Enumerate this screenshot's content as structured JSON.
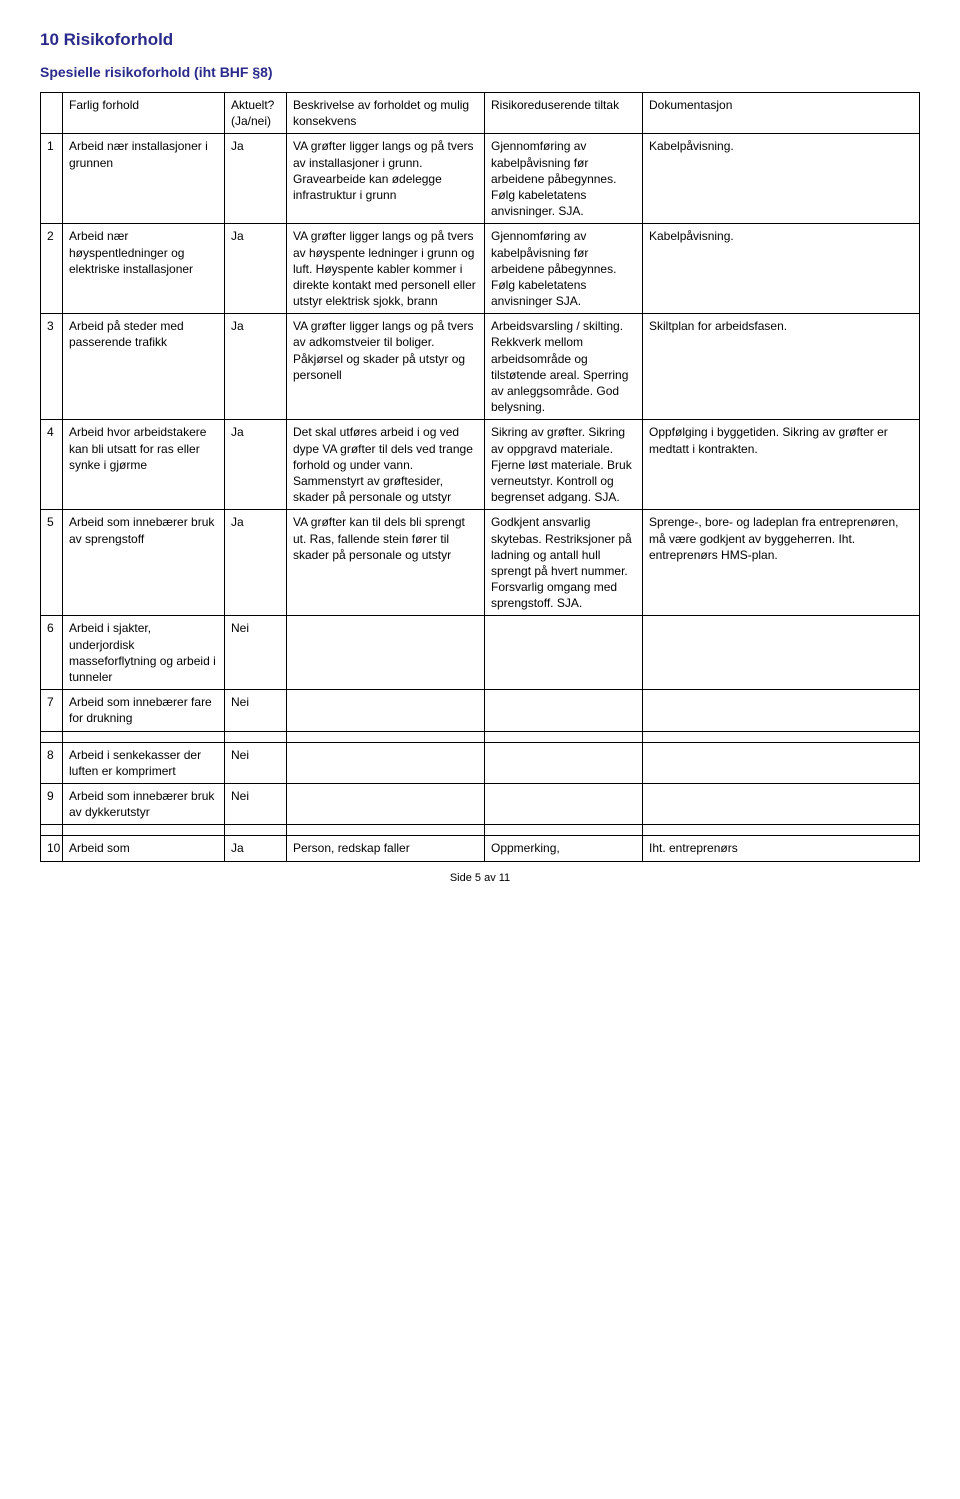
{
  "heading": "10 Risikoforhold",
  "subtitle": "Spesielle risikoforhold (iht BHF §8)",
  "columns": {
    "num": "",
    "forhold": "Farlig forhold",
    "aktuelt": "Aktuelt? (Ja/nei)",
    "besk": "Beskrivelse av forholdet og mulig konsekvens",
    "risk": "Risikoreduserende tiltak",
    "dok": "Dokumentasjon"
  },
  "rows": [
    {
      "n": "1",
      "forhold": "Arbeid nær installasjoner i grunnen",
      "aktuelt": "Ja",
      "besk": "VA grøfter ligger langs og på tvers av installasjoner i grunn. Gravearbeide kan ødelegge infrastruktur i grunn",
      "risk": "Gjennomføring av kabelpåvisning før arbeidene påbegynnes. Følg kabeletatens anvisninger. SJA.",
      "dok": "Kabelpåvisning."
    },
    {
      "n": "2",
      "forhold": "Arbeid nær høyspentledninger og elektriske installasjoner",
      "aktuelt": "Ja",
      "besk": "VA grøfter ligger langs og på tvers av høyspente ledninger i grunn og luft. Høyspente kabler kommer i direkte kontakt med personell eller utstyr elektrisk sjokk, brann",
      "risk": "Gjennomføring av kabelpåvisning før arbeidene påbegynnes. Følg kabeletatens anvisninger SJA.",
      "dok": "Kabelpåvisning."
    },
    {
      "n": "3",
      "forhold": "Arbeid på steder med passerende trafikk",
      "aktuelt": "Ja",
      "besk": "VA grøfter ligger langs og på tvers av adkomstveier til boliger. Påkjørsel og skader på utstyr og personell",
      "risk": "Arbeidsvarsling / skilting. Rekkverk mellom arbeidsområde og tilstøtende areal. Sperring av anleggsområde. God belysning.",
      "dok": "Skiltplan for arbeidsfasen."
    },
    {
      "n": "4",
      "forhold": "Arbeid hvor arbeidstakere kan bli utsatt for ras eller synke i gjørme",
      "aktuelt": "Ja",
      "besk": "Det skal utføres arbeid i og ved dype VA grøfter til dels ved trange forhold og under vann. Sammenstyrt av grøftesider, skader på personale og utstyr",
      "risk": "Sikring av grøfter. Sikring av oppgravd materiale. Fjerne løst materiale. Bruk verneutstyr. Kontroll og begrenset adgang. SJA.",
      "dok": "Oppfølging i byggetiden. Sikring av grøfter er medtatt i kontrakten."
    },
    {
      "n": "5",
      "forhold": "Arbeid som innebærer bruk av sprengstoff",
      "aktuelt": "Ja",
      "besk": "VA grøfter kan til dels bli sprengt ut. Ras, fallende stein fører til skader på personale og utstyr",
      "risk": "Godkjent ansvarlig skytebas. Restriksjoner på ladning og antall hull sprengt på hvert nummer. Forsvarlig omgang med sprengstoff. SJA.",
      "dok": "Sprenge-, bore- og ladeplan fra entreprenøren, må være godkjent av byggeherren. Iht. entreprenørs HMS-plan."
    },
    {
      "n": "6",
      "forhold": "Arbeid i sjakter, underjordisk masseforflytning og arbeid i tunneler",
      "aktuelt": "Nei",
      "besk": "",
      "risk": "",
      "dok": ""
    },
    {
      "n": "7",
      "forhold": "Arbeid som innebærer fare for drukning",
      "aktuelt": "Nei",
      "besk": "",
      "risk": "",
      "dok": ""
    }
  ],
  "rows2": [
    {
      "n": "8",
      "forhold": "Arbeid i senkekasser der luften er komprimert",
      "aktuelt": "Nei",
      "besk": "",
      "risk": "",
      "dok": ""
    },
    {
      "n": "9",
      "forhold": "Arbeid som innebærer bruk av dykkerutstyr",
      "aktuelt": "Nei",
      "besk": "",
      "risk": "",
      "dok": ""
    }
  ],
  "rows3": [
    {
      "n": "10",
      "forhold": "Arbeid som",
      "aktuelt": "Ja",
      "besk": "Person, redskap faller",
      "risk": "Oppmerking,",
      "dok": "Iht. entreprenørs"
    }
  ],
  "footer": "Side 5 av 11"
}
